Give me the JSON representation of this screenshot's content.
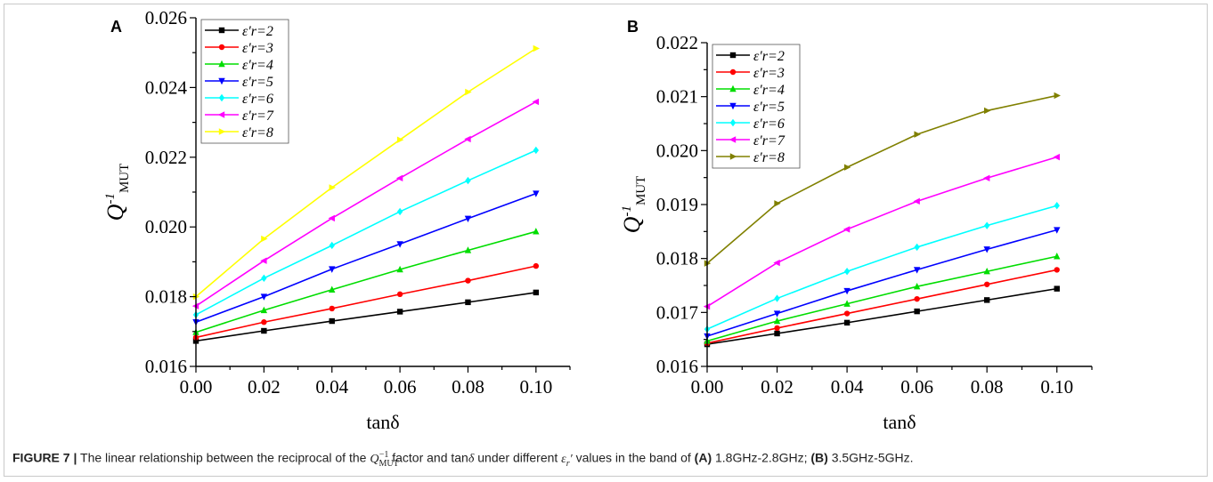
{
  "caption": {
    "label": "FIGURE 7 |",
    "part1": "The linear relationship between the reciprocal of the",
    "q_symbol": "Q",
    "q_sub": "MUT",
    "q_sup": "−1",
    "part2": "factor and tan",
    "delta": "δ",
    "part3": "under different",
    "eps_symbol": "ε",
    "eps_sub": "r",
    "eps_prime": "′",
    "part4": "values in the band of",
    "a_label": "(A)",
    "a_band": "1.8GHz-2.8GHz;",
    "b_label": "(B)",
    "b_band": "3.5GHz-5GHz."
  },
  "chart_data": [
    {
      "panel": "A",
      "type": "line",
      "xlabel": "tanδ",
      "ylabel": "Q",
      "ylabel_sup": "-1",
      "ylabel_sub": "MUT",
      "x": [
        0.0,
        0.02,
        0.04,
        0.06,
        0.08,
        0.1
      ],
      "xlim": [
        0.0,
        0.11
      ],
      "ylim": [
        0.016,
        0.026
      ],
      "xticks": [
        "0.00",
        "0.02",
        "0.04",
        "0.06",
        "0.08",
        "0.10"
      ],
      "yticks": [
        "0.016",
        "0.018",
        "0.020",
        "0.022",
        "0.024",
        "0.026"
      ],
      "legend_position": "top-left",
      "series": [
        {
          "name": "ε′r=2",
          "color": "#000000",
          "marker": "square",
          "values": [
            0.01673,
            0.01702,
            0.0173,
            0.01757,
            0.01784,
            0.01812
          ]
        },
        {
          "name": "ε′r=3",
          "color": "#ff0000",
          "marker": "circle",
          "values": [
            0.01683,
            0.01727,
            0.01766,
            0.01807,
            0.01846,
            0.01888
          ]
        },
        {
          "name": "ε′r=4",
          "color": "#00dd00",
          "marker": "triangle-up",
          "values": [
            0.01698,
            0.01761,
            0.0182,
            0.01878,
            0.01933,
            0.01987
          ]
        },
        {
          "name": "ε′r=5",
          "color": "#0000ff",
          "marker": "triangle-down",
          "values": [
            0.01727,
            0.018,
            0.01879,
            0.01951,
            0.02024,
            0.02096
          ]
        },
        {
          "name": "ε′r=6",
          "color": "#00ffff",
          "marker": "diamond",
          "values": [
            0.01748,
            0.01853,
            0.01947,
            0.02044,
            0.02133,
            0.0222
          ]
        },
        {
          "name": "ε′r=7",
          "color": "#ff00ff",
          "marker": "triangle-left",
          "values": [
            0.01773,
            0.01903,
            0.02025,
            0.0214,
            0.02252,
            0.02359
          ]
        },
        {
          "name": "ε′r=8",
          "color": "#ffff00",
          "marker": "triangle-right",
          "values": [
            0.018,
            0.01966,
            0.02113,
            0.0225,
            0.02387,
            0.02512
          ]
        }
      ]
    },
    {
      "panel": "B",
      "type": "line",
      "xlabel": "tanδ",
      "ylabel": "Q",
      "ylabel_sup": "-1",
      "ylabel_sub": "MUT",
      "x": [
        0.0,
        0.02,
        0.04,
        0.06,
        0.08,
        0.1
      ],
      "xlim": [
        0.0,
        0.11
      ],
      "ylim": [
        0.016,
        0.022
      ],
      "xticks": [
        "0.00",
        "0.02",
        "0.04",
        "0.06",
        "0.08",
        "0.10"
      ],
      "yticks": [
        "0.016",
        "0.017",
        "0.018",
        "0.019",
        "0.020",
        "0.021",
        "0.022"
      ],
      "legend_position": "top-left",
      "series": [
        {
          "name": "ε′r=2",
          "color": "#000000",
          "marker": "square",
          "values": [
            0.01641,
            0.01661,
            0.01681,
            0.01702,
            0.01723,
            0.01744
          ]
        },
        {
          "name": "ε′r=3",
          "color": "#ff0000",
          "marker": "circle",
          "values": [
            0.01643,
            0.01671,
            0.01698,
            0.01725,
            0.01752,
            0.01779
          ]
        },
        {
          "name": "ε′r=4",
          "color": "#00dd00",
          "marker": "triangle-up",
          "values": [
            0.01647,
            0.01684,
            0.01716,
            0.01748,
            0.01776,
            0.01804
          ]
        },
        {
          "name": "ε′r=5",
          "color": "#0000ff",
          "marker": "triangle-down",
          "values": [
            0.01656,
            0.01698,
            0.0174,
            0.01779,
            0.01817,
            0.01853
          ]
        },
        {
          "name": "ε′r=6",
          "color": "#00ffff",
          "marker": "diamond",
          "values": [
            0.01669,
            0.01726,
            0.01776,
            0.01821,
            0.01861,
            0.01898
          ]
        },
        {
          "name": "ε′r=7",
          "color": "#ff00ff",
          "marker": "triangle-left",
          "values": [
            0.01711,
            0.01792,
            0.01854,
            0.01906,
            0.01949,
            0.01988
          ]
        },
        {
          "name": "ε′r=8",
          "color": "#808000",
          "marker": "triangle-right",
          "values": [
            0.01791,
            0.01902,
            0.01969,
            0.0203,
            0.02074,
            0.02102
          ]
        }
      ]
    }
  ]
}
